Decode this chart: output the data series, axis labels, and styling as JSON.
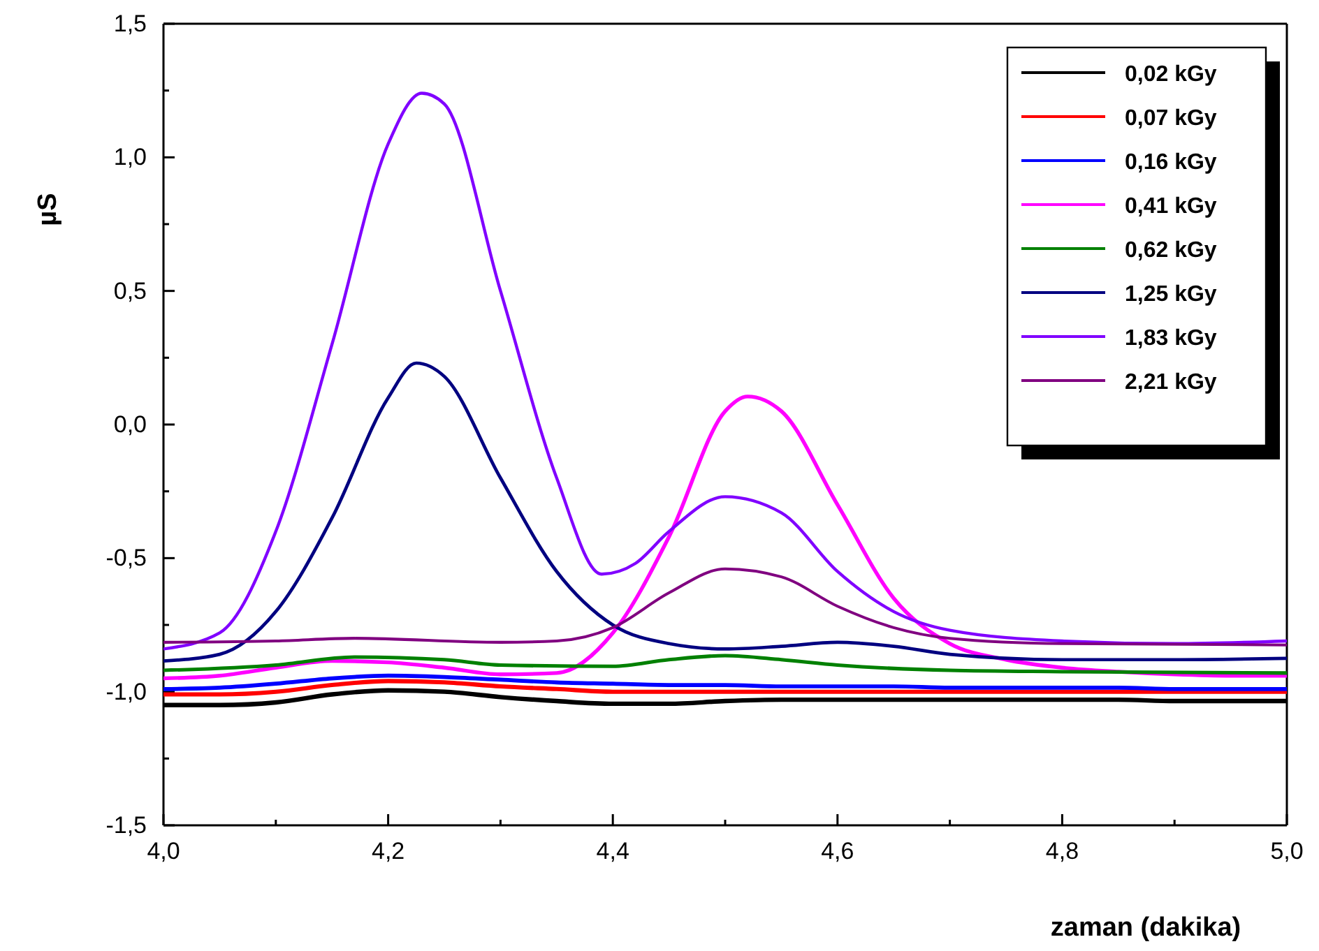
{
  "chart_data": {
    "type": "line",
    "xlabel": "zaman (dakika)",
    "ylabel": "µS",
    "xlim": [
      4.0,
      5.0
    ],
    "ylim": [
      -1.5,
      1.5
    ],
    "xticks": [
      {
        "value": 4.0,
        "label": "4,0"
      },
      {
        "value": 4.1,
        "label": null
      },
      {
        "value": 4.2,
        "label": "4,2"
      },
      {
        "value": 4.3,
        "label": null
      },
      {
        "value": 4.4,
        "label": "4,4"
      },
      {
        "value": 4.5,
        "label": null
      },
      {
        "value": 4.6,
        "label": "4,6"
      },
      {
        "value": 4.7,
        "label": null
      },
      {
        "value": 4.8,
        "label": "4,8"
      },
      {
        "value": 4.9,
        "label": null
      },
      {
        "value": 5.0,
        "label": "5,0"
      }
    ],
    "yticks": [
      {
        "value": -1.5,
        "label": "-1,5"
      },
      {
        "value": -1.25,
        "label": null
      },
      {
        "value": -1.0,
        "label": "-1,0"
      },
      {
        "value": -0.75,
        "label": null
      },
      {
        "value": -0.5,
        "label": "-0,5"
      },
      {
        "value": -0.25,
        "label": null
      },
      {
        "value": 0.0,
        "label": "0,0"
      },
      {
        "value": 0.25,
        "label": null
      },
      {
        "value": 0.5,
        "label": "0,5"
      },
      {
        "value": 0.75,
        "label": null
      },
      {
        "value": 1.0,
        "label": "1,0"
      },
      {
        "value": 1.25,
        "label": null
      },
      {
        "value": 1.5,
        "label": "1,5"
      }
    ],
    "grid": false,
    "legend": "top right",
    "line_style": "solid",
    "marker": "none",
    "x": [
      4.0,
      4.05,
      4.1,
      4.15,
      4.2,
      4.25,
      4.3,
      4.35,
      4.4,
      4.45,
      4.5,
      4.55,
      4.6,
      4.65,
      4.7,
      4.75,
      4.8,
      4.85,
      4.9,
      4.95,
      5.0
    ],
    "series": [
      {
        "name": "0,02 kGy",
        "color": "#000000",
        "values": [
          -1.05,
          -1.05,
          -1.04,
          -1.01,
          -0.995,
          -1.0,
          -1.02,
          -1.035,
          -1.045,
          -1.045,
          -1.035,
          -1.03,
          -1.03,
          -1.03,
          -1.03,
          -1.03,
          -1.03,
          -1.03,
          -1.035,
          -1.035,
          -1.035
        ]
      },
      {
        "name": "0,07 kGy",
        "color": "#ff0000",
        "values": [
          -1.01,
          -1.01,
          -1.0,
          -0.975,
          -0.96,
          -0.965,
          -0.98,
          -0.99,
          -1.0,
          -1.0,
          -1.0,
          -1.0,
          -1.0,
          -1.0,
          -1.0,
          -1.0,
          -1.0,
          -1.0,
          -1.0,
          -1.0,
          -1.0
        ]
      },
      {
        "name": "0,16 kGy",
        "color": "#0000ff",
        "values": [
          -0.99,
          -0.985,
          -0.97,
          -0.95,
          -0.94,
          -0.945,
          -0.955,
          -0.965,
          -0.97,
          -0.975,
          -0.975,
          -0.98,
          -0.98,
          -0.98,
          -0.985,
          -0.985,
          -0.985,
          -0.985,
          -0.99,
          -0.99,
          -0.99
        ]
      },
      {
        "name": "0,41 kGy",
        "color": "#ff00ff",
        "x": [
          4.0,
          4.05,
          4.1,
          4.15,
          4.2,
          4.25,
          4.3,
          4.35,
          4.4,
          4.45,
          4.5,
          4.52,
          4.55,
          4.6,
          4.65,
          4.7,
          4.75,
          4.8,
          4.85,
          4.9,
          4.95,
          5.0
        ],
        "values": [
          -0.95,
          -0.94,
          -0.91,
          -0.885,
          -0.89,
          -0.91,
          -0.935,
          -0.93,
          -0.78,
          -0.42,
          0.05,
          0.105,
          0.05,
          -0.3,
          -0.65,
          -0.82,
          -0.88,
          -0.91,
          -0.925,
          -0.935,
          -0.94,
          -0.94
        ]
      },
      {
        "name": "0,62 kGy",
        "color": "#008000",
        "x": [
          4.0,
          4.1,
          4.17,
          4.25,
          4.3,
          4.4,
          4.45,
          4.5,
          4.55,
          4.6,
          4.7,
          4.8,
          5.0
        ],
        "values": [
          -0.92,
          -0.9,
          -0.87,
          -0.88,
          -0.9,
          -0.905,
          -0.88,
          -0.865,
          -0.88,
          -0.9,
          -0.92,
          -0.925,
          -0.93
        ]
      },
      {
        "name": "1,25 kGy",
        "color": "#000080",
        "x": [
          4.0,
          4.05,
          4.1,
          4.15,
          4.2,
          4.225,
          4.25,
          4.3,
          4.35,
          4.4,
          4.45,
          4.5,
          4.55,
          4.6,
          4.65,
          4.7,
          4.8,
          4.9,
          5.0
        ],
        "values": [
          -0.885,
          -0.86,
          -0.7,
          -0.35,
          0.1,
          0.23,
          0.18,
          -0.2,
          -0.55,
          -0.75,
          -0.82,
          -0.84,
          -0.83,
          -0.815,
          -0.83,
          -0.86,
          -0.88,
          -0.88,
          -0.875
        ]
      },
      {
        "name": "1,83 kGy",
        "color": "#8000ff",
        "x": [
          4.0,
          4.05,
          4.1,
          4.15,
          4.2,
          4.23,
          4.25,
          4.3,
          4.35,
          4.39,
          4.42,
          4.45,
          4.5,
          4.55,
          4.6,
          4.65,
          4.7,
          4.8,
          4.9,
          5.0
        ],
        "values": [
          -0.84,
          -0.78,
          -0.4,
          0.3,
          1.05,
          1.24,
          1.2,
          0.5,
          -0.2,
          -0.56,
          -0.52,
          -0.4,
          -0.27,
          -0.33,
          -0.55,
          -0.7,
          -0.77,
          -0.81,
          -0.82,
          -0.81
        ]
      },
      {
        "name": "2,21 kGy",
        "color": "#800080",
        "x": [
          4.0,
          4.1,
          4.17,
          4.3,
          4.35,
          4.4,
          4.45,
          4.5,
          4.55,
          4.6,
          4.65,
          4.7,
          4.8,
          5.0
        ],
        "values": [
          -0.815,
          -0.81,
          -0.8,
          -0.815,
          -0.81,
          -0.76,
          -0.63,
          -0.54,
          -0.57,
          -0.68,
          -0.76,
          -0.8,
          -0.82,
          -0.825
        ]
      }
    ]
  }
}
